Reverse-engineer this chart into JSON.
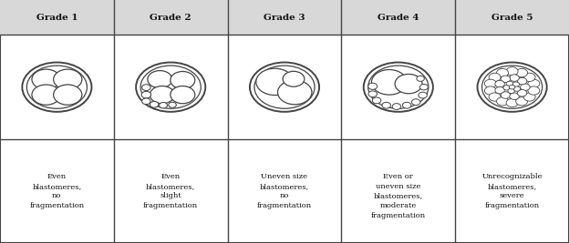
{
  "grades": [
    "Grade 1",
    "Grade 2",
    "Grade 3",
    "Grade 4",
    "Grade 5"
  ],
  "descriptions": [
    "Even\nblastomeres,\nno\nfragmentation",
    "Even\nblastomeres,\nslight\nfragmentation",
    "Uneven size\nblastomeres,\nno\nfragmentation",
    "Even or\nuneven size\nblastomeres,\nmoderate\nfragmentation",
    "Unrecognizable\nblastomeres,\nsevere\nfragmentation"
  ],
  "bg_color": "#f0f0f0",
  "header_bg": "#d8d8d8",
  "border_color": "#444444",
  "cell_bg": "#ffffff",
  "text_color": "#111111",
  "lw": 1.0
}
